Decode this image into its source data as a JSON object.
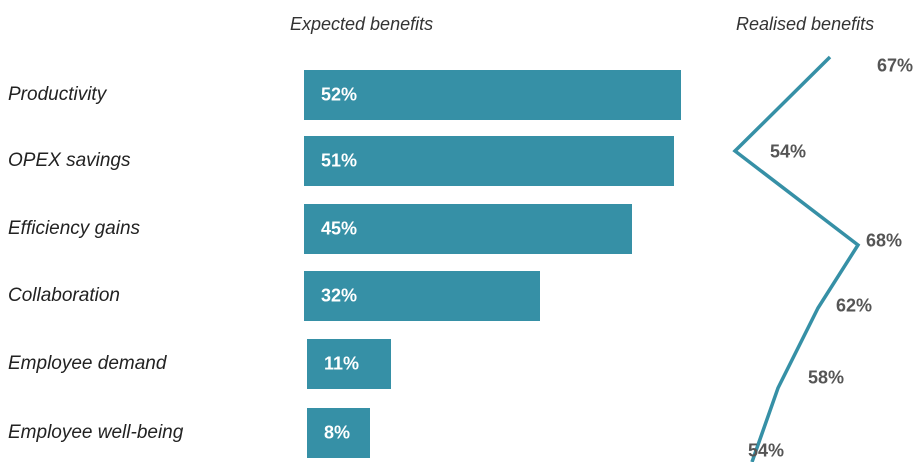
{
  "chart_data": {
    "type": "bar",
    "orientation": "horizontal",
    "categories": [
      "Productivity",
      "OPEX savings",
      "Efficiency gains",
      "Collaboration",
      "Employee demand",
      "Employee well-being"
    ],
    "headers": {
      "bars": "Expected benefits",
      "line": "Realised benefits"
    },
    "series": [
      {
        "name": "Expected benefits",
        "type": "bar",
        "values": [
          52,
          51,
          45,
          32,
          11,
          8
        ],
        "labels": [
          "52%",
          "51%",
          "45%",
          "32%",
          "11%",
          "8%"
        ],
        "color": "#3690A6"
      },
      {
        "name": "Realised benefits",
        "type": "line",
        "values": [
          67,
          54,
          68,
          62,
          58,
          54
        ],
        "labels": [
          "67%",
          "54%",
          "68%",
          "62%",
          "58%",
          "54%"
        ],
        "color": "#3690A6"
      }
    ],
    "grid": false,
    "legend": "none"
  }
}
